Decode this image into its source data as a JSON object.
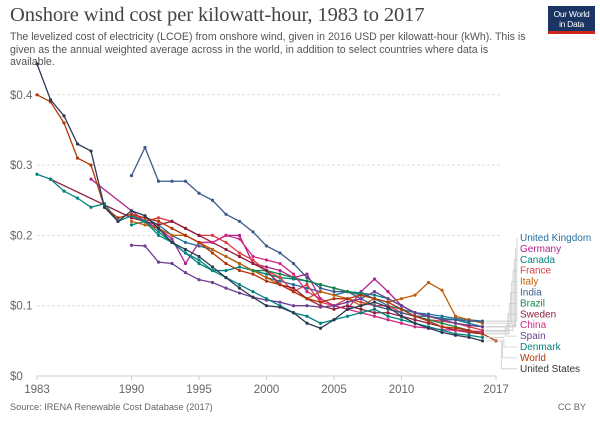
{
  "header": {
    "title": "Onshore wind cost per kilowatt-hour, 1983 to 2017",
    "subtitle": "The levelized cost of electricity (LCOE) from onshore wind, given in 2016 USD per kilowatt-hour (kWh). This is given as the annual weighted average across in the world, in addition to select countries where data is available.",
    "logo_line1": "Our World",
    "logo_line2": "in Data"
  },
  "footer": {
    "source": "Source: IRENA Renewable Cost Database (2017)",
    "license": "CC BY"
  },
  "chart_data": {
    "type": "line",
    "title": "Onshore wind cost per kilowatt-hour, 1983 to 2017",
    "xlabel": "",
    "ylabel": "",
    "xlim": [
      1983,
      2017
    ],
    "ylim": [
      0,
      0.45
    ],
    "x_ticks": [
      1983,
      1990,
      1995,
      2000,
      2005,
      2010,
      2017
    ],
    "y_ticks": [
      {
        "value": 0,
        "label": "$0"
      },
      {
        "value": 0.1,
        "label": "$0.1"
      },
      {
        "value": 0.2,
        "label": "$0.2"
      },
      {
        "value": 0.3,
        "label": "$0.3"
      },
      {
        "value": 0.4,
        "label": "$0.4"
      }
    ],
    "grid": "horizontal-dashed",
    "legend_position": "right",
    "series": [
      {
        "name": "United Kingdom",
        "color": "#1f6f9c",
        "x": [
          1991,
          1992,
          1993,
          1994,
          1995,
          1996,
          1997,
          1998,
          1999,
          2000,
          2001,
          2002,
          2003,
          2004,
          2005,
          2006,
          2007,
          2008,
          2009,
          2010,
          2011,
          2012,
          2013,
          2014,
          2015,
          2016
        ],
        "values": [
          0.225,
          0.215,
          0.2,
          0.19,
          0.185,
          0.18,
          0.17,
          0.16,
          0.15,
          0.14,
          0.135,
          0.13,
          0.125,
          0.12,
          0.115,
          0.12,
          0.118,
          0.11,
          0.1,
          0.095,
          0.09,
          0.088,
          0.085,
          0.082,
          0.08,
          0.078
        ]
      },
      {
        "name": "Germany",
        "color": "#b0228c",
        "x": [
          1987,
          1990,
          1991,
          1992,
          1993,
          1994,
          1995,
          1996,
          1997,
          1998,
          1999,
          2000,
          2001,
          2002,
          2003,
          2004,
          2005,
          2006,
          2007,
          2008,
          2009,
          2010,
          2011,
          2012,
          2013,
          2014,
          2015,
          2016
        ],
        "values": [
          0.28,
          0.235,
          0.22,
          0.21,
          0.195,
          0.16,
          0.19,
          0.19,
          0.2,
          0.2,
          0.16,
          0.155,
          0.15,
          0.14,
          0.145,
          0.11,
          0.1,
          0.095,
          0.12,
          0.138,
          0.12,
          0.1,
          0.09,
          0.085,
          0.08,
          0.075,
          0.072,
          0.07
        ]
      },
      {
        "name": "Canada",
        "color": "#00847e",
        "x": [
          1990,
          1991,
          1992,
          1993,
          1994,
          1995,
          1996,
          1997,
          1998,
          1999,
          2000,
          2001,
          2002,
          2003,
          2004,
          2005,
          2006,
          2007,
          2008,
          2009,
          2010,
          2011,
          2012,
          2013,
          2014,
          2015,
          2016
        ],
        "values": [
          0.215,
          0.22,
          0.205,
          0.19,
          0.175,
          0.16,
          0.15,
          0.15,
          0.155,
          0.15,
          0.145,
          0.14,
          0.138,
          0.135,
          0.13,
          0.125,
          0.12,
          0.118,
          0.115,
          0.11,
          0.1,
          0.09,
          0.085,
          0.082,
          0.08,
          0.075,
          0.07
        ]
      },
      {
        "name": "France",
        "color": "#e03a3e",
        "x": [
          1990,
          1991,
          1992,
          1993,
          1994,
          1995,
          1996,
          1997,
          1998,
          1999,
          2000,
          2001,
          2002,
          2003,
          2004,
          2005,
          2006,
          2007,
          2008,
          2009,
          2010,
          2011,
          2012,
          2013,
          2014,
          2015,
          2016
        ],
        "values": [
          0.23,
          0.22,
          0.225,
          0.22,
          0.21,
          0.2,
          0.2,
          0.19,
          0.175,
          0.165,
          0.15,
          0.14,
          0.12,
          0.13,
          0.105,
          0.1,
          0.11,
          0.105,
          0.1,
          0.1,
          0.09,
          0.085,
          0.08,
          0.078,
          0.075,
          0.07,
          0.065
        ]
      },
      {
        "name": "Italy",
        "color": "#c15e05",
        "x": [
          1990,
          1991,
          1992,
          1993,
          1994,
          1995,
          1996,
          1997,
          1998,
          1999,
          2000,
          2001,
          2002,
          2003,
          2004,
          2005,
          2006,
          2007,
          2008,
          2009,
          2010,
          2011,
          2012,
          2013,
          2014,
          2015,
          2016
        ],
        "values": [
          0.22,
          0.215,
          0.21,
          0.2,
          0.2,
          0.19,
          0.18,
          0.17,
          0.16,
          0.15,
          0.14,
          0.13,
          0.12,
          0.11,
          0.12,
          0.115,
          0.11,
          0.1,
          0.11,
          0.105,
          0.11,
          0.115,
          0.133,
          0.122,
          0.085,
          0.08,
          0.075
        ]
      },
      {
        "name": "India",
        "color": "#3c5a8c",
        "x": [
          1990,
          1991,
          1992,
          1993,
          1994,
          1995,
          1996,
          1997,
          1998,
          1999,
          2000,
          2001,
          2002,
          2003,
          2004,
          2005,
          2006,
          2007,
          2008,
          2009,
          2010,
          2011,
          2012,
          2013,
          2014,
          2015,
          2016
        ],
        "values": [
          0.285,
          0.325,
          0.277,
          0.277,
          0.277,
          0.26,
          0.25,
          0.23,
          0.22,
          0.205,
          0.185,
          0.175,
          0.16,
          0.14,
          0.125,
          0.12,
          0.12,
          0.11,
          0.1,
          0.095,
          0.09,
          0.085,
          0.085,
          0.08,
          0.08,
          0.078,
          0.078
        ]
      },
      {
        "name": "Brazil",
        "color": "#18814a",
        "x": [
          1999,
          2000,
          2001,
          2002,
          2003,
          2004,
          2005,
          2006,
          2007,
          2008,
          2009,
          2010,
          2011,
          2012,
          2013,
          2014,
          2015,
          2016
        ],
        "values": [
          0.15,
          0.15,
          0.145,
          0.14,
          0.135,
          0.13,
          0.125,
          0.12,
          0.115,
          0.11,
          0.105,
          0.095,
          0.085,
          0.08,
          0.075,
          0.07,
          0.065,
          0.06
        ]
      },
      {
        "name": "Sweden",
        "color": "#8c1f3a",
        "x": [
          1984,
          1990,
          1991,
          1992,
          1993,
          1994,
          1995,
          1996,
          1997,
          1998,
          1999,
          2000,
          2001,
          2002,
          2003,
          2004,
          2005,
          2006,
          2007,
          2008,
          2009,
          2010,
          2011,
          2012,
          2013,
          2014,
          2015,
          2016
        ],
        "values": [
          0.28,
          0.225,
          0.22,
          0.215,
          0.22,
          0.21,
          0.2,
          0.19,
          0.18,
          0.17,
          0.16,
          0.15,
          0.13,
          0.125,
          0.11,
          0.1,
          0.095,
          0.1,
          0.095,
          0.09,
          0.09,
          0.085,
          0.08,
          0.075,
          0.07,
          0.065,
          0.062,
          0.06
        ]
      },
      {
        "name": "China",
        "color": "#d12a84",
        "x": [
          1995,
          1996,
          1997,
          1998,
          1999,
          2000,
          2001,
          2002,
          2003,
          2004,
          2005,
          2006,
          2007,
          2008,
          2009,
          2010,
          2011,
          2012,
          2013,
          2014,
          2015,
          2016
        ],
        "values": [
          0.19,
          0.19,
          0.2,
          0.195,
          0.17,
          0.165,
          0.16,
          0.145,
          0.12,
          0.11,
          0.1,
          0.095,
          0.09,
          0.085,
          0.08,
          0.075,
          0.07,
          0.068,
          0.066,
          0.065,
          0.064,
          0.063
        ]
      },
      {
        "name": "Spain",
        "color": "#6d3e91",
        "x": [
          1990,
          1991,
          1992,
          1993,
          1994,
          1995,
          1996,
          1997,
          1998,
          1999,
          2000,
          2001,
          2002,
          2003,
          2004,
          2005,
          2006,
          2007,
          2008,
          2009,
          2010,
          2011,
          2012,
          2013,
          2014,
          2015,
          2016
        ],
        "values": [
          0.186,
          0.185,
          0.162,
          0.16,
          0.147,
          0.137,
          0.133,
          0.125,
          0.118,
          0.112,
          0.108,
          0.105,
          0.1,
          0.1,
          0.098,
          0.1,
          0.105,
          0.11,
          0.12,
          0.11,
          0.1,
          0.09,
          0.085,
          0.08,
          0.075,
          0.072,
          0.07
        ]
      },
      {
        "name": "Denmark",
        "color": "#00847e",
        "x": [
          1983,
          1984,
          1985,
          1986,
          1987,
          1988,
          1989,
          1990,
          1991,
          1992,
          1993,
          1994,
          1995,
          1996,
          1997,
          1998,
          1999,
          2000,
          2001,
          2002,
          2003,
          2004,
          2005,
          2006,
          2007,
          2008,
          2009,
          2010,
          2011,
          2012,
          2013,
          2014,
          2015,
          2016
        ],
        "values": [
          0.287,
          0.28,
          0.263,
          0.253,
          0.24,
          0.245,
          0.22,
          0.228,
          0.22,
          0.2,
          0.19,
          0.175,
          0.165,
          0.15,
          0.14,
          0.13,
          0.12,
          0.11,
          0.1,
          0.09,
          0.085,
          0.075,
          0.08,
          0.085,
          0.09,
          0.095,
          0.085,
          0.08,
          0.075,
          0.07,
          0.065,
          0.06,
          0.058,
          0.055
        ]
      },
      {
        "name": "World",
        "color": "#b13507",
        "x": [
          1983,
          1984,
          1985,
          1986,
          1987,
          1988,
          1989,
          1990,
          1991,
          1992,
          1993,
          1994,
          1995,
          1996,
          1997,
          1998,
          1999,
          2000,
          2001,
          2002,
          2003,
          2004,
          2005,
          2006,
          2007,
          2008,
          2009,
          2010,
          2011,
          2012,
          2013,
          2014,
          2015,
          2016,
          2017
        ],
        "values": [
          0.4,
          0.39,
          0.36,
          0.31,
          0.3,
          0.24,
          0.225,
          0.23,
          0.225,
          0.22,
          0.21,
          0.2,
          0.19,
          0.175,
          0.16,
          0.15,
          0.145,
          0.135,
          0.13,
          0.12,
          0.11,
          0.105,
          0.11,
          0.11,
          0.115,
          0.11,
          0.105,
          0.095,
          0.085,
          0.078,
          0.07,
          0.068,
          0.065,
          0.06,
          0.05
        ]
      },
      {
        "name": "United States",
        "color": "#2b3a55",
        "x": [
          1983,
          1984,
          1985,
          1986,
          1987,
          1988,
          1989,
          1990,
          1991,
          1992,
          1993,
          1994,
          1995,
          1996,
          1997,
          1998,
          1999,
          2000,
          2001,
          2002,
          2003,
          2004,
          2005,
          2006,
          2007,
          2008,
          2009,
          2010,
          2011,
          2012,
          2013,
          2014,
          2015,
          2016
        ],
        "values": [
          0.444,
          0.393,
          0.37,
          0.33,
          0.32,
          0.24,
          0.22,
          0.235,
          0.228,
          0.21,
          0.19,
          0.18,
          0.17,
          0.155,
          0.14,
          0.125,
          0.112,
          0.1,
          0.098,
          0.09,
          0.075,
          0.068,
          0.08,
          0.095,
          0.1,
          0.105,
          0.098,
          0.085,
          0.075,
          0.068,
          0.062,
          0.058,
          0.055,
          0.05
        ]
      }
    ]
  }
}
